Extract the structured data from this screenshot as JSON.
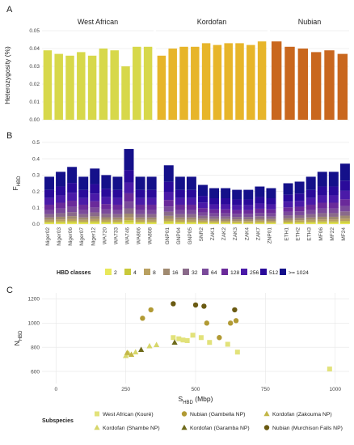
{
  "colors": {
    "west_african": "#d7d84a",
    "kordofan": "#e7b52a",
    "nubian": "#c9671e",
    "west_african_dark": "#8a8a1e",
    "kordofan_dark": "#7a6a12",
    "nubian_dark": "#7a5a10",
    "nubian_light": "#a08020",
    "hbd_classes": [
      "#e8e85a",
      "#c9c93a",
      "#b9a060",
      "#a08a70",
      "#8a6a8a",
      "#7a4a9a",
      "#6a2a9a",
      "#4a1aa8",
      "#2a0a9a",
      "#14108a"
    ]
  },
  "chart_data": [
    {
      "panel": "A",
      "type": "bar",
      "ylabel": "Heterozygosity (%)",
      "ylim": [
        0,
        0.05
      ],
      "yticks": [
        0.0,
        0.01,
        0.02,
        0.03,
        0.04,
        0.05
      ],
      "ytick_labels": [
        "0.00",
        "0.01",
        "0.02",
        "0.03",
        "0.04",
        "0.05"
      ],
      "groups": [
        {
          "name": "West African",
          "samples": [
            "Niger02",
            "Niger03",
            "Niger06",
            "Niger07",
            "Niger12",
            "WA720",
            "WA733",
            "WA746",
            "WA806",
            "WA808"
          ],
          "values": [
            0.039,
            0.037,
            0.036,
            0.038,
            0.036,
            0.04,
            0.039,
            0.03,
            0.041,
            0.041
          ]
        },
        {
          "name": "Kordofan",
          "samples": [
            "GNP01",
            "GNP04",
            "GNP05",
            "SNR2",
            "ZAK1",
            "ZAK2",
            "ZAK3",
            "ZAK4",
            "ZAK7",
            "ZNP01"
          ],
          "values": [
            0.036,
            0.04,
            0.041,
            0.041,
            0.043,
            0.042,
            0.043,
            0.043,
            0.042,
            0.044
          ]
        },
        {
          "name": "Nubian",
          "samples": [
            "ETH1",
            "ETH2",
            "ETH3",
            "MF06",
            "MF22",
            "MF24"
          ],
          "values": [
            0.044,
            0.041,
            0.04,
            0.038,
            0.039,
            0.037
          ]
        }
      ]
    },
    {
      "panel": "B",
      "type": "bar",
      "ylabel": "F",
      "ylabel_sub": "HBD",
      "ylim": [
        0,
        0.5
      ],
      "yticks": [
        0.0,
        0.1,
        0.2,
        0.3,
        0.4,
        0.5
      ],
      "ytick_labels": [
        "0.0",
        "0.1",
        "0.2",
        "0.3",
        "0.4",
        "0.5"
      ],
      "categories": [
        "Niger02",
        "Niger03",
        "Niger06",
        "Niger07",
        "Niger12",
        "WA720",
        "WA733",
        "WA746",
        "WA806",
        "WA808",
        "GNP01",
        "GNP04",
        "GNP05",
        "SNR2",
        "ZAK1",
        "ZAK2",
        "ZAK3",
        "ZAK4",
        "ZAK7",
        "ZNP01",
        "ETH1",
        "ETH2",
        "ETH3",
        "MF06",
        "MF22",
        "MF24"
      ],
      "totals": [
        0.29,
        0.32,
        0.35,
        0.29,
        0.34,
        0.3,
        0.29,
        0.46,
        0.29,
        0.29,
        0.36,
        0.29,
        0.29,
        0.24,
        0.22,
        0.22,
        0.21,
        0.21,
        0.23,
        0.22,
        0.25,
        0.26,
        0.29,
        0.32,
        0.32,
        0.37
      ],
      "legend_title": "HBD classes",
      "legend": [
        "2",
        "4",
        "8",
        "16",
        "32",
        "64",
        "128",
        "256",
        "512",
        ">= 1024"
      ]
    },
    {
      "panel": "C",
      "type": "scatter",
      "xlabel": "S",
      "xlabel_sub": "HBD",
      "xlabel_unit": " (Mbp)",
      "ylabel": "N",
      "ylabel_sub": "HBD",
      "xlim": [
        -50,
        1050
      ],
      "ylim": [
        500,
        1250
      ],
      "xticks": [
        0,
        250,
        500,
        750,
        1000
      ],
      "xtick_labels": [
        "0",
        "250",
        "500",
        "750",
        "1000"
      ],
      "yticks": [
        600,
        800,
        1000,
        1200
      ],
      "ytick_labels": [
        "600",
        "800",
        "1000",
        "1200"
      ],
      "legend_title": "Subspecies",
      "series": [
        {
          "name": "West African (Kouré)",
          "marker": "square",
          "color": "#e2e27a",
          "points": [
            [
              420,
              880
            ],
            [
              440,
              870
            ],
            [
              455,
              860
            ],
            [
              470,
              855
            ],
            [
              490,
              900
            ],
            [
              520,
              880
            ],
            [
              550,
              840
            ],
            [
              615,
              825
            ],
            [
              650,
              760
            ],
            [
              980,
              620
            ]
          ]
        },
        {
          "name": "Kordofan (Shambe NP)",
          "marker": "triangle",
          "color": "#d6d66a",
          "points": [
            [
              250,
              730
            ],
            [
              260,
              750
            ],
            [
              285,
              760
            ],
            [
              335,
              810
            ],
            [
              360,
              820
            ]
          ]
        },
        {
          "name": "Kordofan (Garamba NP)",
          "marker": "triangle",
          "color": "#6e6a1a",
          "points": [
            [
              305,
              780
            ],
            [
              425,
              840
            ]
          ]
        },
        {
          "name": "Kordofan (Zakouma NP)",
          "marker": "triangle",
          "color": "#c2b646",
          "points": [
            [
              255,
              755
            ],
            [
              270,
              740
            ]
          ]
        },
        {
          "name": "Nubian (Gambella NP)",
          "marker": "circle",
          "color": "#b19a34",
          "points": [
            [
              310,
              1040
            ],
            [
              340,
              1110
            ],
            [
              540,
              1000
            ],
            [
              585,
              880
            ],
            [
              625,
              1000
            ],
            [
              645,
              1020
            ]
          ]
        },
        {
          "name": "Nubian (Murchison Falls NP)",
          "marker": "circle",
          "color": "#6a5a12",
          "points": [
            [
              420,
              1160
            ],
            [
              500,
              1150
            ],
            [
              530,
              1140
            ],
            [
              640,
              1110
            ]
          ]
        }
      ]
    }
  ],
  "labels": {
    "panel_a": "A",
    "panel_b": "B",
    "panel_c": "C"
  }
}
